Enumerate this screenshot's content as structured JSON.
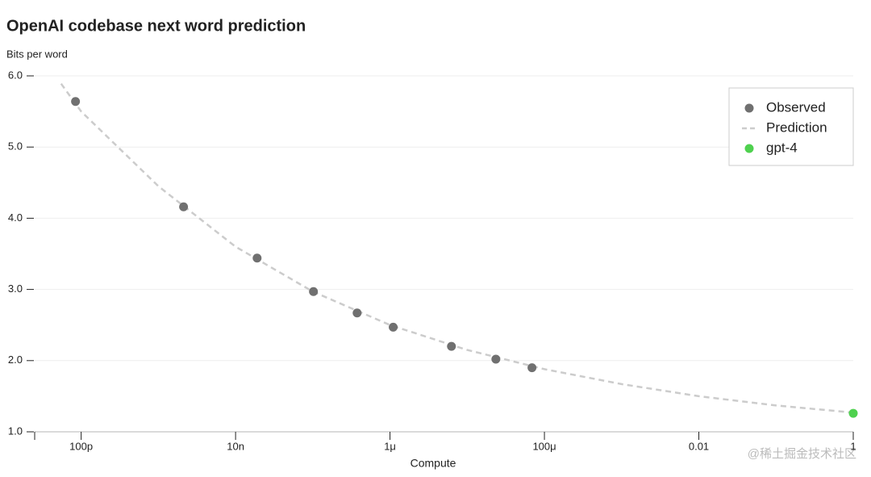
{
  "chart_data": {
    "type": "scatter",
    "title": "OpenAI codebase next word prediction",
    "y_label": "Bits per word",
    "x_label": "Compute",
    "watermark": "@稀土掘金技术社区",
    "log_x": true,
    "grid": true,
    "legend_position": "upper right",
    "xlim": [
      2.5e-11,
      1
    ],
    "xticks": [
      {
        "value": 1e-10,
        "label": "100p"
      },
      {
        "value": 1e-08,
        "label": "10n"
      },
      {
        "value": 1e-06,
        "label": "1μ"
      },
      {
        "value": 0.0001,
        "label": "100μ"
      },
      0.01,
      1
    ],
    "ylim": [
      1,
      6
    ],
    "yticks": [
      {
        "value": 1,
        "label": "1.0"
      },
      {
        "value": 2,
        "label": "2.0"
      },
      {
        "value": 3,
        "label": "3.0"
      },
      {
        "value": 4,
        "label": "4.0"
      },
      {
        "value": 5,
        "label": "5.0"
      },
      {
        "value": 6,
        "label": "6.0"
      }
    ],
    "series": [
      {
        "name": "Prediction",
        "color": "#cccccc",
        "dashed": true,
        "x": [
          5.5e-11,
          1e-10,
          1e-09,
          1e-08,
          1e-07,
          1e-06,
          1e-05,
          0.0001,
          0.001,
          0.01,
          0.1,
          1
        ],
        "values": [
          5.89,
          5.5,
          4.45,
          3.6,
          2.97,
          2.5,
          2.15,
          1.88,
          1.67,
          1.5,
          1.37,
          1.27
        ]
      },
      {
        "name": "Observed",
        "color": "#707070",
        "x": [
          8.45e-11,
          2.12e-09,
          1.9e-08,
          1.02e-07,
          3.75e-07,
          1.1e-06,
          6.25e-06,
          2.35e-05,
          6.9e-05
        ],
        "values": [
          5.64,
          4.16,
          3.44,
          2.97,
          2.67,
          2.47,
          2.2,
          2.02,
          1.9
        ]
      },
      {
        "name": "gpt-4",
        "color": "#4fd14f",
        "x": [
          1
        ],
        "values": [
          1.26
        ]
      }
    ]
  }
}
